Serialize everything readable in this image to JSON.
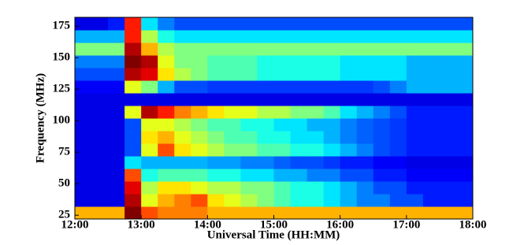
{
  "chart_data": {
    "type": "heatmap",
    "x_label": "Universal Time (HH:MM)",
    "y_label": "Frequency (MHz)",
    "x": [
      12.125,
      12.375,
      12.625,
      12.875,
      13.125,
      13.375,
      13.625,
      13.875,
      14.125,
      14.375,
      14.625,
      14.875,
      15.125,
      15.375,
      15.625,
      15.875,
      16.125,
      16.375,
      16.625,
      16.875,
      17.125,
      17.375,
      17.625,
      17.875
    ],
    "y": [
      27,
      37,
      47,
      57,
      67,
      77,
      87,
      97,
      107,
      117,
      127,
      137,
      147,
      157,
      167,
      177
    ],
    "values": [
      [
        0.7,
        0.7,
        0.7,
        1.0,
        0.8,
        0.75,
        0.75,
        0.75,
        0.7,
        0.7,
        0.7,
        0.7,
        0.7,
        0.7,
        0.7,
        0.7,
        0.7,
        0.7,
        0.7,
        0.7,
        0.7,
        0.7,
        0.7,
        0.7
      ],
      [
        0.1,
        0.1,
        0.1,
        0.95,
        0.6,
        0.7,
        0.75,
        0.8,
        0.65,
        0.6,
        0.55,
        0.5,
        0.45,
        0.4,
        0.4,
        0.35,
        0.3,
        0.25,
        0.25,
        0.2,
        0.2,
        0.15,
        0.15,
        0.15
      ],
      [
        0.1,
        0.1,
        0.1,
        0.9,
        0.55,
        0.65,
        0.65,
        0.6,
        0.55,
        0.55,
        0.5,
        0.5,
        0.45,
        0.4,
        0.4,
        0.35,
        0.3,
        0.25,
        0.2,
        0.2,
        0.15,
        0.15,
        0.15,
        0.15
      ],
      [
        0.1,
        0.1,
        0.1,
        0.8,
        0.4,
        0.45,
        0.45,
        0.45,
        0.4,
        0.4,
        0.35,
        0.35,
        0.3,
        0.3,
        0.25,
        0.25,
        0.2,
        0.2,
        0.15,
        0.15,
        0.12,
        0.12,
        0.12,
        0.12
      ],
      [
        0.1,
        0.1,
        0.1,
        0.35,
        0.3,
        0.3,
        0.3,
        0.3,
        0.28,
        0.28,
        0.25,
        0.25,
        0.22,
        0.2,
        0.2,
        0.18,
        0.15,
        0.15,
        0.12,
        0.12,
        0.1,
        0.1,
        0.1,
        0.1
      ],
      [
        0.1,
        0.1,
        0.1,
        0.2,
        0.6,
        0.8,
        0.65,
        0.6,
        0.55,
        0.5,
        0.5,
        0.45,
        0.45,
        0.4,
        0.4,
        0.35,
        0.3,
        0.25,
        0.2,
        0.18,
        0.15,
        0.15,
        0.15,
        0.15
      ],
      [
        0.1,
        0.1,
        0.1,
        0.2,
        0.65,
        0.7,
        0.6,
        0.55,
        0.5,
        0.45,
        0.45,
        0.4,
        0.4,
        0.35,
        0.35,
        0.3,
        0.25,
        0.22,
        0.2,
        0.18,
        0.15,
        0.15,
        0.15,
        0.15
      ],
      [
        0.1,
        0.1,
        0.1,
        0.2,
        0.6,
        0.6,
        0.55,
        0.5,
        0.45,
        0.45,
        0.4,
        0.4,
        0.35,
        0.35,
        0.3,
        0.3,
        0.25,
        0.22,
        0.2,
        0.18,
        0.15,
        0.15,
        0.15,
        0.15
      ],
      [
        0.1,
        0.1,
        0.1,
        0.6,
        0.95,
        0.85,
        0.75,
        0.7,
        0.65,
        0.6,
        0.6,
        0.55,
        0.55,
        0.5,
        0.5,
        0.45,
        0.35,
        0.3,
        0.25,
        0.2,
        0.15,
        0.15,
        0.15,
        0.15
      ],
      [
        0.1,
        0.1,
        0.1,
        0.1,
        0.1,
        0.1,
        0.1,
        0.1,
        0.1,
        0.1,
        0.1,
        0.1,
        0.1,
        0.1,
        0.1,
        0.1,
        0.1,
        0.1,
        0.1,
        0.1,
        0.1,
        0.1,
        0.1,
        0.1
      ],
      [
        0.12,
        0.12,
        0.12,
        0.6,
        0.5,
        0.3,
        0.2,
        0.2,
        0.18,
        0.18,
        0.18,
        0.18,
        0.18,
        0.18,
        0.18,
        0.18,
        0.18,
        0.18,
        0.2,
        0.25,
        0.3,
        0.3,
        0.3,
        0.3
      ],
      [
        0.2,
        0.2,
        0.2,
        0.95,
        0.9,
        0.65,
        0.55,
        0.5,
        0.45,
        0.45,
        0.45,
        0.4,
        0.4,
        0.4,
        0.4,
        0.4,
        0.35,
        0.35,
        0.35,
        0.35,
        0.3,
        0.3,
        0.3,
        0.3
      ],
      [
        0.25,
        0.25,
        0.25,
        1.0,
        0.95,
        0.6,
        0.5,
        0.5,
        0.45,
        0.45,
        0.45,
        0.4,
        0.4,
        0.4,
        0.4,
        0.4,
        0.35,
        0.35,
        0.35,
        0.35,
        0.3,
        0.3,
        0.3,
        0.3
      ],
      [
        0.5,
        0.5,
        0.5,
        0.95,
        0.7,
        0.55,
        0.5,
        0.5,
        0.5,
        0.5,
        0.5,
        0.5,
        0.5,
        0.5,
        0.5,
        0.5,
        0.5,
        0.5,
        0.5,
        0.5,
        0.5,
        0.5,
        0.5,
        0.5
      ],
      [
        0.3,
        0.3,
        0.3,
        0.85,
        0.55,
        0.4,
        0.35,
        0.35,
        0.35,
        0.35,
        0.35,
        0.35,
        0.35,
        0.35,
        0.35,
        0.35,
        0.35,
        0.35,
        0.35,
        0.35,
        0.35,
        0.35,
        0.35,
        0.35
      ],
      [
        0.1,
        0.1,
        0.15,
        0.85,
        0.35,
        0.25,
        0.2,
        0.2,
        0.2,
        0.2,
        0.2,
        0.2,
        0.2,
        0.2,
        0.2,
        0.2,
        0.2,
        0.2,
        0.2,
        0.2,
        0.2,
        0.2,
        0.2,
        0.2
      ]
    ],
    "xlim": [
      12,
      18
    ],
    "ylim": [
      22,
      182
    ],
    "xticks": [
      {
        "value": 12,
        "label": "12:00"
      },
      {
        "value": 13,
        "label": "13:00"
      },
      {
        "value": 14,
        "label": "14:00"
      },
      {
        "value": 15,
        "label": "15:00"
      },
      {
        "value": 16,
        "label": "16:00"
      },
      {
        "value": 17,
        "label": "17:00"
      },
      {
        "value": 18,
        "label": "18:00"
      }
    ],
    "yticks": [
      25,
      50,
      75,
      100,
      125,
      150,
      175
    ],
    "colormap": "jet"
  }
}
